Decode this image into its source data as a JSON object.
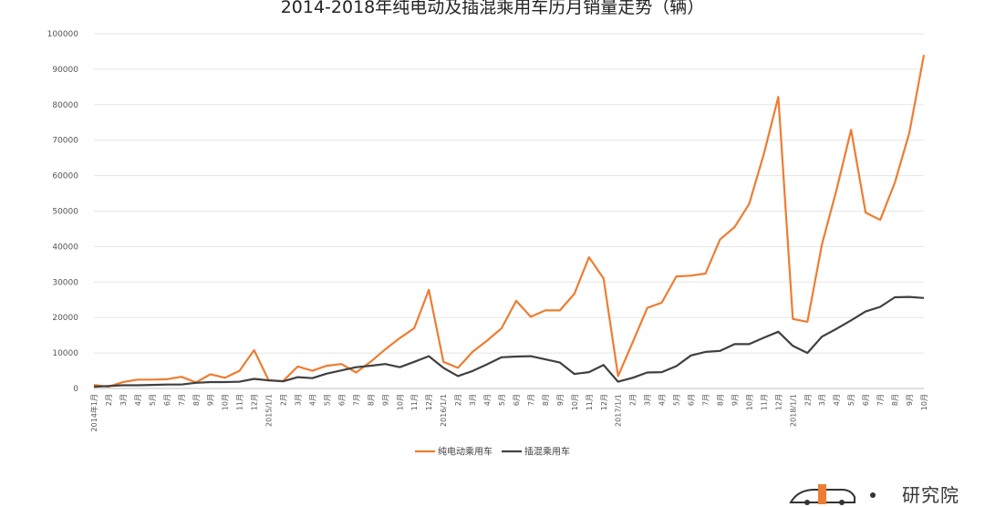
{
  "chart_data": {
    "type": "line",
    "title": "2014-2018年纯电动及插混乘用车历月销量走势（辆）",
    "ylim": [
      0,
      100000
    ],
    "yticks": [
      0,
      10000,
      20000,
      30000,
      40000,
      50000,
      60000,
      70000,
      80000,
      90000,
      100000
    ],
    "categories": [
      "2014年1月",
      "2月",
      "3月",
      "4月",
      "5月",
      "6月",
      "7月",
      "8月",
      "9月",
      "10月",
      "11月",
      "12月",
      "2015/1/1",
      "2月",
      "3月",
      "4月",
      "5月",
      "6月",
      "7月",
      "8月",
      "9月",
      "10月",
      "11月",
      "12月",
      "2016/1/1",
      "2月",
      "3月",
      "4月",
      "5月",
      "6月",
      "7月",
      "8月",
      "9月",
      "10月",
      "11月",
      "12月",
      "2017/1/1",
      "2月",
      "3月",
      "4月",
      "5月",
      "6月",
      "7月",
      "8月",
      "9月",
      "10月",
      "11月",
      "12月",
      "2018/1/1",
      "2月",
      "3月",
      "4月",
      "5月",
      "6月",
      "7月",
      "8月",
      "9月",
      "10月"
    ],
    "series": [
      {
        "name": "纯电动乘用车",
        "color": "#ED7D31",
        "values": [
          1000,
          500,
          1800,
          2500,
          2500,
          2600,
          3300,
          1700,
          4000,
          3000,
          5000,
          10800,
          2300,
          2100,
          6200,
          5000,
          6400,
          6900,
          4500,
          7500,
          11000,
          14200,
          17000,
          27800,
          7500,
          5800,
          10300,
          13500,
          17000,
          24700,
          20200,
          22000,
          22000,
          26700,
          37000,
          31000,
          3500,
          13000,
          22700,
          24200,
          31600,
          31800,
          32400,
          42000,
          45500,
          52000,
          66000,
          82200,
          19600,
          18800,
          40600,
          56000,
          72900,
          49600,
          47500,
          58000,
          72000,
          94000
        ]
      },
      {
        "name": "插混乘用车",
        "color": "#404040",
        "values": [
          500,
          700,
          900,
          900,
          1000,
          1100,
          1100,
          1600,
          1800,
          1800,
          1900,
          2700,
          2300,
          2000,
          3200,
          2900,
          4200,
          5100,
          6000,
          6400,
          6900,
          6000,
          7500,
          9100,
          5800,
          3500,
          4900,
          6800,
          8800,
          9000,
          9100,
          8200,
          7300,
          4100,
          4600,
          6600,
          1900,
          3000,
          4500,
          4600,
          6300,
          9300,
          10300,
          10600,
          12500,
          12500,
          14300,
          16000,
          12000,
          10000,
          14600,
          16800,
          19200,
          21700,
          23000,
          25700,
          25800,
          25500
        ]
      }
    ],
    "legend": "bottom"
  },
  "logo": {
    "text": "研究院"
  }
}
